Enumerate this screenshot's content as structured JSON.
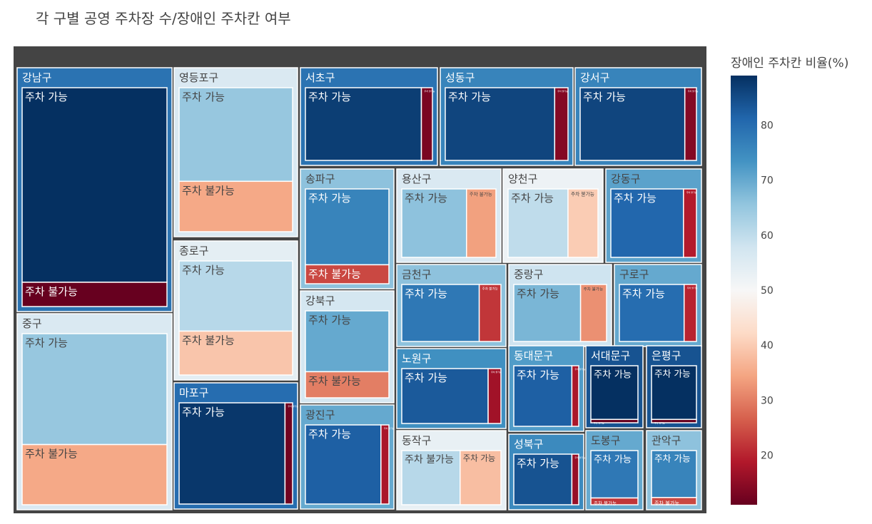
{
  "colors": {
    "background": "#444444",
    "colorscale": [
      [
        0.0,
        "#67001f"
      ],
      [
        0.1,
        "#b2182b"
      ],
      [
        0.2,
        "#d6604d"
      ],
      [
        0.3,
        "#f4a582"
      ],
      [
        0.4,
        "#fddbc7"
      ],
      [
        0.5,
        "#f7f7f7"
      ],
      [
        0.6,
        "#d1e5f0"
      ],
      [
        0.7,
        "#92c5de"
      ],
      [
        0.8,
        "#4393c3"
      ],
      [
        0.9,
        "#2166ac"
      ],
      [
        1.0,
        "#053061"
      ]
    ]
  },
  "chart_data": {
    "type": "treemap",
    "title": "각 구별 공영 주차장 수/장애인 주차칸 여부",
    "colorbar": {
      "title": "장애인 주차칸 비율(%)",
      "range": [
        11,
        89
      ],
      "ticks": [
        20,
        30,
        40,
        50,
        60,
        70,
        80
      ]
    },
    "districts": [
      {
        "name": "강남구",
        "ratio": 79,
        "children": [
          {
            "name": "주차 가능",
            "value": 160,
            "ratio": 89
          },
          {
            "name": "주차 불가능",
            "value": 20,
            "ratio": 11
          }
        ]
      },
      {
        "name": "중구",
        "ratio": 56,
        "children": [
          {
            "name": "주차 가능",
            "value": 70,
            "ratio": 65
          },
          {
            "name": "주차 불가능",
            "value": 38,
            "ratio": 35
          }
        ]
      },
      {
        "name": "영등포구",
        "ratio": 56,
        "children": [
          {
            "name": "주차 가능",
            "value": 52,
            "ratio": 65
          },
          {
            "name": "주차 불가능",
            "value": 28,
            "ratio": 35
          }
        ]
      },
      {
        "name": "종로구",
        "ratio": 54,
        "children": [
          {
            "name": "주차 가능",
            "value": 40,
            "ratio": 61
          },
          {
            "name": "주차 불가능",
            "value": 25,
            "ratio": 39
          }
        ]
      },
      {
        "name": "마포구",
        "ratio": 80,
        "children": [
          {
            "name": "주차 가능",
            "value": 56,
            "ratio": 88
          },
          {
            "name": "주차 불가능",
            "value": 4,
            "ratio": 12
          }
        ]
      },
      {
        "name": "서초구",
        "ratio": 79,
        "children": [
          {
            "name": "주차 가능",
            "value": 42,
            "ratio": 87
          },
          {
            "name": "주차 불가능",
            "value": 4,
            "ratio": 13
          }
        ]
      },
      {
        "name": "성동구",
        "ratio": 76,
        "children": [
          {
            "name": "주차 가능",
            "value": 41,
            "ratio": 86
          },
          {
            "name": "주차 불가능",
            "value": 5,
            "ratio": 14
          }
        ]
      },
      {
        "name": "강서구",
        "ratio": 76,
        "children": [
          {
            "name": "주차 가능",
            "value": 36,
            "ratio": 86
          },
          {
            "name": "주차 불가능",
            "value": 4,
            "ratio": 14
          }
        ]
      },
      {
        "name": "송파구",
        "ratio": 66,
        "children": [
          {
            "name": "주차 가능",
            "value": 36,
            "ratio": 76
          },
          {
            "name": "주차 불가능",
            "value": 9,
            "ratio": 24
          }
        ]
      },
      {
        "name": "강북구",
        "ratio": 57,
        "children": [
          {
            "name": "주차 가능",
            "value": 28,
            "ratio": 70
          },
          {
            "name": "주차 불가능",
            "value": 12,
            "ratio": 30
          }
        ]
      },
      {
        "name": "광진구",
        "ratio": 70,
        "children": [
          {
            "name": "주차 가능",
            "value": 38,
            "ratio": 82
          },
          {
            "name": "주차 불가능",
            "value": 4,
            "ratio": 18
          }
        ]
      },
      {
        "name": "용산구",
        "ratio": 56,
        "children": [
          {
            "name": "주차 가능",
            "value": 22,
            "ratio": 66
          },
          {
            "name": "주차 불가능",
            "value": 10,
            "ratio": 34
          }
        ]
      },
      {
        "name": "양천구",
        "ratio": 52,
        "children": [
          {
            "name": "주차 가능",
            "value": 20,
            "ratio": 60
          },
          {
            "name": "주차 불가능",
            "value": 10,
            "ratio": 40
          }
        ]
      },
      {
        "name": "강동구",
        "ratio": 71,
        "children": [
          {
            "name": "주차 가능",
            "value": 28,
            "ratio": 81
          },
          {
            "name": "주차 불가능",
            "value": 5,
            "ratio": 19
          }
        ]
      },
      {
        "name": "금천구",
        "ratio": 66,
        "children": [
          {
            "name": "주차 가능",
            "value": 25,
            "ratio": 78
          },
          {
            "name": "주차 불가능",
            "value": 7,
            "ratio": 22
          }
        ]
      },
      {
        "name": "중랑구",
        "ratio": 58,
        "children": [
          {
            "name": "주차 가능",
            "value": 18,
            "ratio": 68
          },
          {
            "name": "주차 불가능",
            "value": 7,
            "ratio": 32
          }
        ]
      },
      {
        "name": "구로구",
        "ratio": 70,
        "children": [
          {
            "name": "주차 가능",
            "value": 21,
            "ratio": 80
          },
          {
            "name": "주차 불가능",
            "value": 4,
            "ratio": 20
          }
        ]
      },
      {
        "name": "노원구",
        "ratio": 74,
        "children": [
          {
            "name": "주차 가능",
            "value": 27,
            "ratio": 83
          },
          {
            "name": "주차 불가능",
            "value": 4,
            "ratio": 17
          }
        ]
      },
      {
        "name": "동작구",
        "ratio": 53,
        "children": [
          {
            "name": "주차 불가능",
            "value": 10,
            "ratio": 61
          },
          {
            "name": "주차 가능",
            "value": 7,
            "ratio": 38
          }
        ]
      },
      {
        "name": "동대문구",
        "ratio": 72,
        "children": [
          {
            "name": "주차 가능",
            "value": 17,
            "ratio": 82
          },
          {
            "name": "주차 불가능",
            "value": 2,
            "ratio": 18
          }
        ]
      },
      {
        "name": "성북구",
        "ratio": 75,
        "children": [
          {
            "name": "주차 가능",
            "value": 17,
            "ratio": 84
          },
          {
            "name": "주차 불가능",
            "value": 2,
            "ratio": 16
          }
        ]
      },
      {
        "name": "서대문구",
        "ratio": 84,
        "children": [
          {
            "name": "주차 가능",
            "value": 16,
            "ratio": 89
          },
          {
            "name": "주차 불가능",
            "value": 1,
            "ratio": 11
          }
        ]
      },
      {
        "name": "은평구",
        "ratio": 84,
        "children": [
          {
            "name": "주차 가능",
            "value": 16,
            "ratio": 89
          },
          {
            "name": "주차 불가능",
            "value": 1,
            "ratio": 11
          }
        ]
      },
      {
        "name": "도봉구",
        "ratio": 70,
        "children": [
          {
            "name": "주차 가능",
            "value": 14,
            "ratio": 78
          },
          {
            "name": "주차 불가능",
            "value": 2,
            "ratio": 22
          }
        ]
      },
      {
        "name": "관악구",
        "ratio": 66,
        "children": [
          {
            "name": "주차 가능",
            "value": 13,
            "ratio": 76
          },
          {
            "name": "주차 불가능",
            "value": 2,
            "ratio": 24
          }
        ]
      }
    ]
  }
}
